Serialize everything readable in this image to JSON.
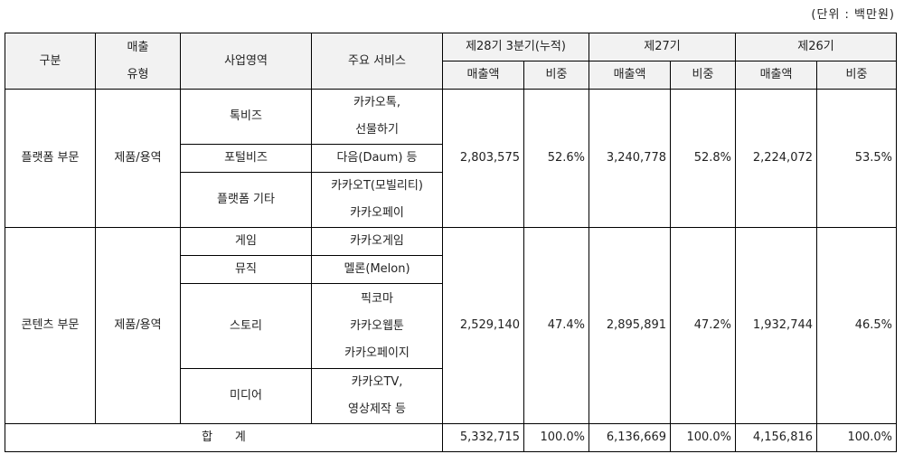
{
  "unit": "(단위 : 백만원)",
  "header": {
    "category": "구분",
    "sales_type_1": "매출",
    "sales_type_2": "유형",
    "business_area": "사업영역",
    "main_service": "주요 서비스",
    "period_28": "제28기 3분기(누적)",
    "period_27": "제27기",
    "period_26": "제26기",
    "sales": "매출액",
    "ratio": "비중"
  },
  "platform": {
    "category": "플랫폼 부문",
    "type": "제품/용역",
    "areas": [
      {
        "name": "톡비즈",
        "services": [
          "카카오톡,",
          "선물하기"
        ]
      },
      {
        "name": "포털비즈",
        "services": [
          "다음(Daum) 등"
        ]
      },
      {
        "name": "플랫폼 기타",
        "services": [
          "카카오T(모빌리티)",
          "카카오페이"
        ]
      }
    ],
    "s28": "2,803,575",
    "r28": "52.6%",
    "s27": "3,240,778",
    "r27": "52.8%",
    "s26": "2,224,072",
    "r26": "53.5%"
  },
  "content": {
    "category": "콘텐츠 부문",
    "type": "제품/용역",
    "areas": [
      {
        "name": "게임",
        "services": [
          "카카오게임"
        ]
      },
      {
        "name": "뮤직",
        "services": [
          "멜론(Melon)"
        ]
      },
      {
        "name": "스토리",
        "services": [
          "픽코마",
          "카카오웹툰",
          "카카오페이지"
        ]
      },
      {
        "name": "미디어",
        "services": [
          "카카오TV,",
          "영상제작 등"
        ]
      }
    ],
    "s28": "2,529,140",
    "r28": "47.4%",
    "s27": "2,895,891",
    "r27": "47.2%",
    "s26": "1,932,744",
    "r26": "46.5%"
  },
  "total": {
    "label": "합      계",
    "s28": "5,332,715",
    "r28": "100.0%",
    "s27": "6,136,669",
    "r27": "100.0%",
    "s26": "4,156,816",
    "r26": "100.0%"
  }
}
